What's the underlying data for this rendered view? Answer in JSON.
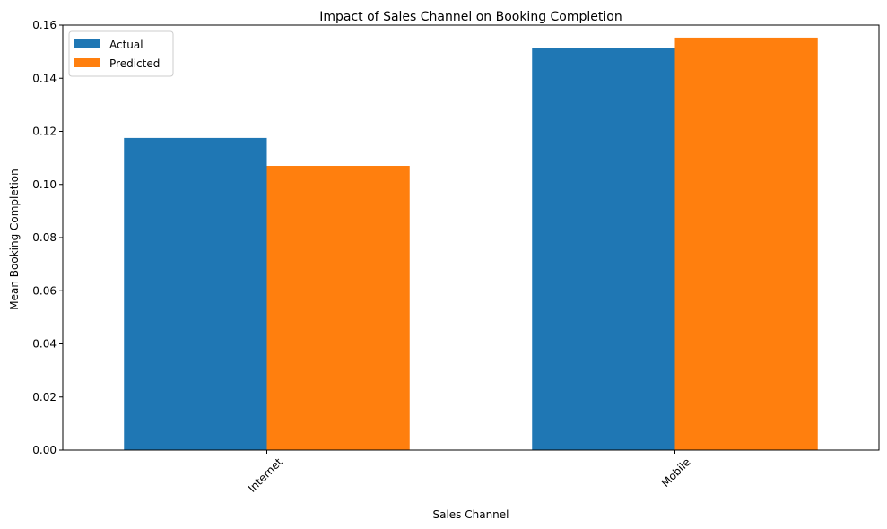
{
  "chart_data": {
    "type": "bar",
    "title": "Impact of Sales Channel on Booking Completion",
    "xlabel": "Sales Channel",
    "ylabel": "Mean Booking Completion",
    "categories": [
      "Internet",
      "Mobile"
    ],
    "series": [
      {
        "name": "Actual",
        "values": [
          0.1175,
          0.1515
        ],
        "color": "#1f77b4"
      },
      {
        "name": "Predicted",
        "values": [
          0.107,
          0.1553
        ],
        "color": "#ff7f0e"
      }
    ],
    "ylim": [
      0,
      0.16
    ],
    "yticks": [
      "0.00",
      "0.02",
      "0.04",
      "0.06",
      "0.08",
      "0.10",
      "0.12",
      "0.14",
      "0.16"
    ],
    "grid": false,
    "legend_position": "top-left"
  }
}
